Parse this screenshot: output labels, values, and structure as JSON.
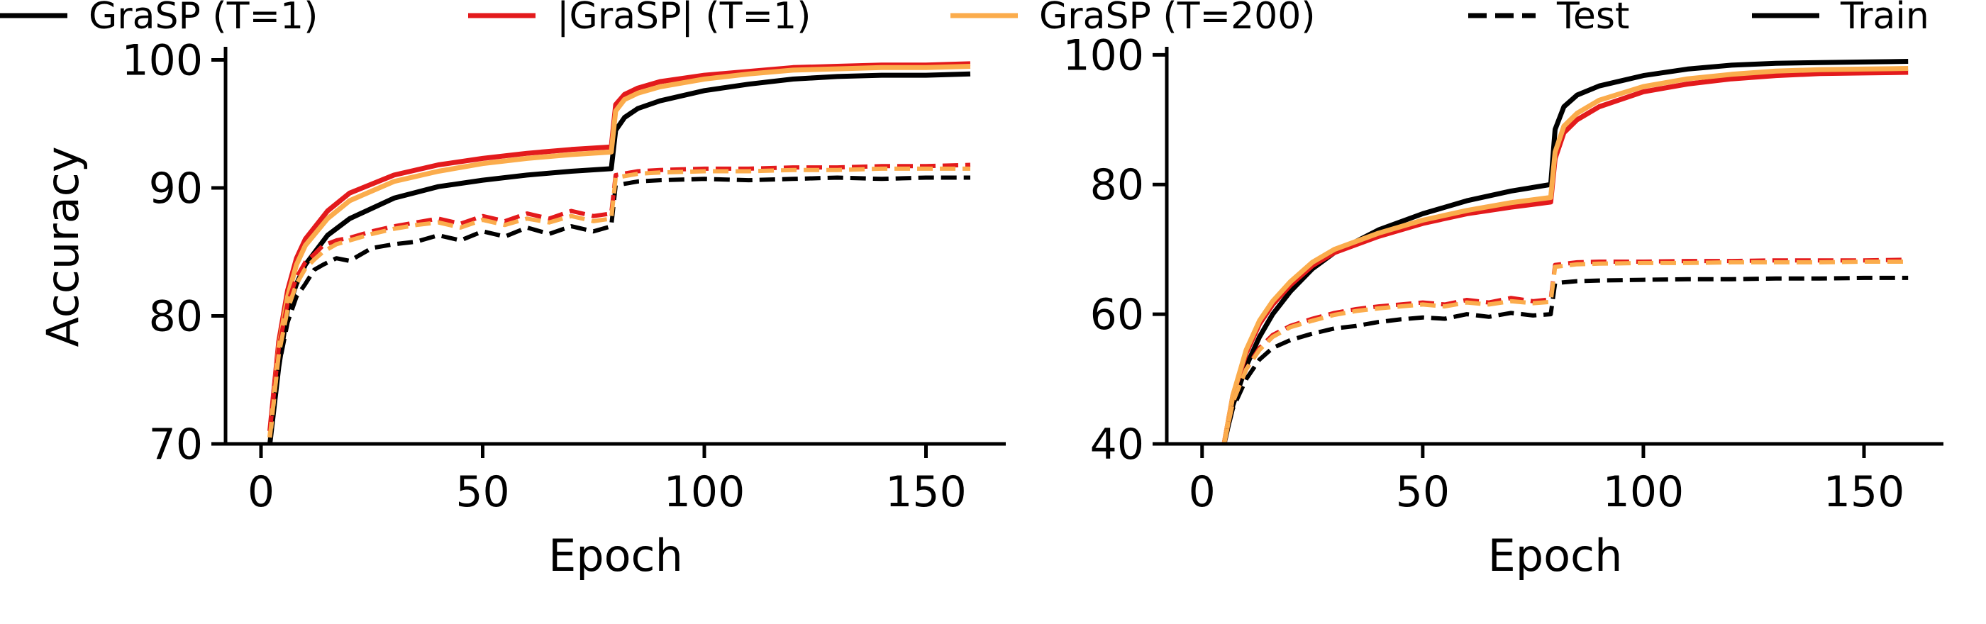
{
  "legend": [
    {
      "label": "GraSP (T=1)",
      "color": "#000000",
      "dash": "solid"
    },
    {
      "label": "|GraSP| (T=1)",
      "color": "#e31a1c",
      "dash": "solid"
    },
    {
      "label": "GraSP (T=200)",
      "color": "#fbac4c",
      "dash": "solid"
    },
    {
      "label": "Test",
      "color": "#000000",
      "dash": "dashed"
    },
    {
      "label": "Train",
      "color": "#000000",
      "dash": "solid"
    }
  ],
  "chart_data": [
    {
      "type": "line",
      "title": "",
      "xlabel": "Epoch",
      "ylabel": "Accuracy",
      "xlim": [
        -8,
        168
      ],
      "ylim": [
        70,
        100.8
      ],
      "xticks": [
        0,
        50,
        100,
        150
      ],
      "yticks": [
        70,
        80,
        90,
        100
      ],
      "grid": false,
      "series": [
        {
          "method": "GraSP (T=1)",
          "split": "Train",
          "color": "#000000",
          "dash": "solid",
          "x": [
            2,
            4,
            6,
            8,
            10,
            15,
            20,
            30,
            40,
            50,
            60,
            70,
            79,
            80,
            82,
            85,
            90,
            100,
            110,
            120,
            130,
            140,
            150,
            160
          ],
          "y": [
            70,
            76,
            80.5,
            82.5,
            84,
            86.3,
            87.6,
            89.2,
            90.1,
            90.6,
            91,
            91.3,
            91.5,
            94.5,
            95.5,
            96.2,
            96.8,
            97.6,
            98.1,
            98.5,
            98.7,
            98.8,
            98.8,
            98.9
          ]
        },
        {
          "method": "|GraSP| (T=1)",
          "split": "Train",
          "color": "#e31a1c",
          "dash": "solid",
          "x": [
            2,
            4,
            6,
            8,
            10,
            15,
            20,
            30,
            40,
            50,
            60,
            70,
            79,
            80,
            82,
            85,
            90,
            100,
            110,
            120,
            130,
            140,
            150,
            160
          ],
          "y": [
            71,
            78,
            82,
            84.5,
            86,
            88.2,
            89.6,
            91,
            91.8,
            92.3,
            92.7,
            93,
            93.2,
            96.5,
            97.3,
            97.8,
            98.3,
            98.8,
            99.1,
            99.4,
            99.5,
            99.6,
            99.6,
            99.7
          ]
        },
        {
          "method": "GraSP (T=200)",
          "split": "Train",
          "color": "#fbac4c",
          "dash": "solid",
          "x": [
            2,
            4,
            6,
            8,
            10,
            15,
            20,
            30,
            40,
            50,
            60,
            70,
            79,
            80,
            82,
            85,
            90,
            100,
            110,
            120,
            130,
            140,
            150,
            160
          ],
          "y": [
            70.5,
            77.5,
            81.5,
            84,
            85.5,
            87.6,
            89,
            90.5,
            91.3,
            91.9,
            92.3,
            92.6,
            92.8,
            96,
            96.9,
            97.4,
            97.9,
            98.5,
            98.9,
            99.2,
            99.3,
            99.4,
            99.4,
            99.5
          ]
        },
        {
          "method": "GraSP (T=1)",
          "split": "Test",
          "color": "#000000",
          "dash": "dashed",
          "x": [
            2,
            4,
            6,
            8,
            10,
            12,
            14,
            17,
            20,
            25,
            30,
            35,
            40,
            45,
            50,
            55,
            60,
            65,
            70,
            75,
            79,
            80,
            85,
            90,
            100,
            110,
            120,
            130,
            140,
            150,
            160
          ],
          "y": [
            70,
            76,
            79.5,
            81.5,
            82.5,
            83.6,
            84,
            84.5,
            84.3,
            85.3,
            85.6,
            85.8,
            86.3,
            85.9,
            86.6,
            86.2,
            86.9,
            86.4,
            87,
            86.6,
            87,
            90.2,
            90.5,
            90.6,
            90.7,
            90.6,
            90.7,
            90.8,
            90.7,
            90.8,
            90.8
          ]
        },
        {
          "method": "|GraSP| (T=1)",
          "split": "Test",
          "color": "#e31a1c",
          "dash": "dashed",
          "x": [
            2,
            4,
            6,
            8,
            10,
            12,
            14,
            17,
            20,
            25,
            30,
            35,
            40,
            45,
            50,
            55,
            60,
            65,
            70,
            75,
            79,
            80,
            85,
            90,
            100,
            110,
            120,
            130,
            140,
            150,
            160
          ],
          "y": [
            71,
            77.5,
            81,
            83,
            84.2,
            84.8,
            85.5,
            85.9,
            86.1,
            86.6,
            87,
            87.3,
            87.6,
            87.2,
            87.8,
            87.4,
            88,
            87.6,
            88.2,
            87.8,
            88,
            91,
            91.3,
            91.4,
            91.5,
            91.5,
            91.6,
            91.6,
            91.7,
            91.7,
            91.8
          ]
        },
        {
          "method": "GraSP (T=200)",
          "split": "Test",
          "color": "#fbac4c",
          "dash": "dashed",
          "x": [
            2,
            4,
            6,
            8,
            10,
            12,
            14,
            17,
            20,
            25,
            30,
            35,
            40,
            45,
            50,
            55,
            60,
            65,
            70,
            75,
            79,
            80,
            85,
            90,
            100,
            110,
            120,
            130,
            140,
            150,
            160
          ],
          "y": [
            70.5,
            77,
            80.5,
            82.5,
            83.7,
            84.4,
            85,
            85.6,
            85.9,
            86.4,
            86.8,
            87.1,
            87.3,
            86.9,
            87.5,
            87.1,
            87.6,
            87.3,
            87.8,
            87.4,
            87.6,
            90.8,
            91.1,
            91.2,
            91.3,
            91.3,
            91.4,
            91.4,
            91.5,
            91.5,
            91.5
          ]
        }
      ]
    },
    {
      "type": "line",
      "title": "",
      "xlabel": "Epoch",
      "ylabel": "",
      "xlim": [
        -8,
        168
      ],
      "ylim": [
        40,
        100.8
      ],
      "xticks": [
        0,
        50,
        100,
        150
      ],
      "yticks": [
        40,
        60,
        80,
        100
      ],
      "grid": false,
      "series": [
        {
          "method": "GraSP (T=1)",
          "split": "Train",
          "color": "#000000",
          "dash": "solid",
          "x": [
            5,
            7,
            10,
            13,
            16,
            20,
            25,
            30,
            40,
            50,
            60,
            70,
            79,
            80,
            82,
            85,
            90,
            100,
            110,
            120,
            130,
            140,
            150,
            160
          ],
          "y": [
            40,
            46,
            52,
            56.5,
            60,
            63.5,
            67,
            69.5,
            73,
            75.5,
            77.5,
            79,
            80,
            88.5,
            92,
            93.8,
            95.2,
            96.8,
            97.8,
            98.4,
            98.7,
            98.8,
            98.9,
            99
          ]
        },
        {
          "method": "|GraSP| (T=1)",
          "split": "Train",
          "color": "#e31a1c",
          "dash": "solid",
          "x": [
            5,
            7,
            10,
            13,
            16,
            20,
            25,
            30,
            40,
            50,
            60,
            70,
            79,
            80,
            82,
            85,
            90,
            100,
            110,
            120,
            130,
            140,
            150,
            160
          ],
          "y": [
            40,
            47.5,
            54,
            58.5,
            61.5,
            64.5,
            67.5,
            69.5,
            72,
            74,
            75.5,
            76.5,
            77.3,
            84,
            88,
            90,
            92,
            94.3,
            95.5,
            96.3,
            96.8,
            97.1,
            97.2,
            97.3
          ]
        },
        {
          "method": "GraSP (T=200)",
          "split": "Train",
          "color": "#fbac4c",
          "dash": "solid",
          "x": [
            5,
            7,
            10,
            13,
            16,
            20,
            25,
            30,
            40,
            50,
            60,
            70,
            79,
            80,
            82,
            85,
            90,
            100,
            110,
            120,
            130,
            140,
            150,
            160
          ],
          "y": [
            40,
            47.5,
            54.5,
            59,
            62,
            65,
            68,
            70,
            72.5,
            74.5,
            76,
            77.2,
            78,
            85,
            89,
            91,
            93,
            95.1,
            96.3,
            97,
            97.5,
            97.7,
            97.8,
            97.9
          ]
        },
        {
          "method": "GraSP (T=1)",
          "split": "Test",
          "color": "#000000",
          "dash": "dashed",
          "x": [
            5,
            7,
            10,
            13,
            16,
            20,
            25,
            30,
            35,
            40,
            45,
            50,
            55,
            60,
            65,
            70,
            75,
            79,
            80,
            85,
            90,
            100,
            110,
            120,
            130,
            140,
            150,
            160
          ],
          "y": [
            40,
            45.5,
            50,
            53,
            54.8,
            56,
            57,
            57.8,
            58.2,
            58.8,
            59.2,
            59.5,
            59.3,
            60,
            59.6,
            60.2,
            59.8,
            60,
            64.8,
            65.1,
            65.2,
            65.3,
            65.4,
            65.4,
            65.5,
            65.5,
            65.6,
            65.6
          ]
        },
        {
          "method": "|GraSP| (T=1)",
          "split": "Test",
          "color": "#e31a1c",
          "dash": "dashed",
          "x": [
            5,
            7,
            10,
            13,
            16,
            20,
            25,
            30,
            35,
            40,
            45,
            50,
            55,
            60,
            65,
            70,
            75,
            79,
            80,
            85,
            90,
            100,
            110,
            120,
            130,
            140,
            150,
            160
          ],
          "y": [
            40,
            46.5,
            51.5,
            54.8,
            56.8,
            58.2,
            59.3,
            60.2,
            60.8,
            61.2,
            61.5,
            61.8,
            61.5,
            62.2,
            61.8,
            62.5,
            62,
            62.3,
            67.6,
            68,
            68.1,
            68.1,
            68.2,
            68.2,
            68.3,
            68.3,
            68.3,
            68.4
          ]
        },
        {
          "method": "GraSP (T=200)",
          "split": "Test",
          "color": "#fbac4c",
          "dash": "dashed",
          "x": [
            5,
            7,
            10,
            13,
            16,
            20,
            25,
            30,
            35,
            40,
            45,
            50,
            55,
            60,
            65,
            70,
            75,
            79,
            80,
            85,
            90,
            100,
            110,
            120,
            130,
            140,
            150,
            160
          ],
          "y": [
            40,
            46.5,
            51.5,
            54.5,
            56.5,
            58,
            59,
            59.9,
            60.5,
            60.9,
            61.2,
            61.5,
            61.2,
            61.8,
            61.5,
            62,
            61.7,
            61.9,
            67.3,
            67.7,
            67.8,
            67.9,
            67.9,
            68,
            68,
            68,
            68.1,
            68.1
          ]
        }
      ]
    }
  ]
}
